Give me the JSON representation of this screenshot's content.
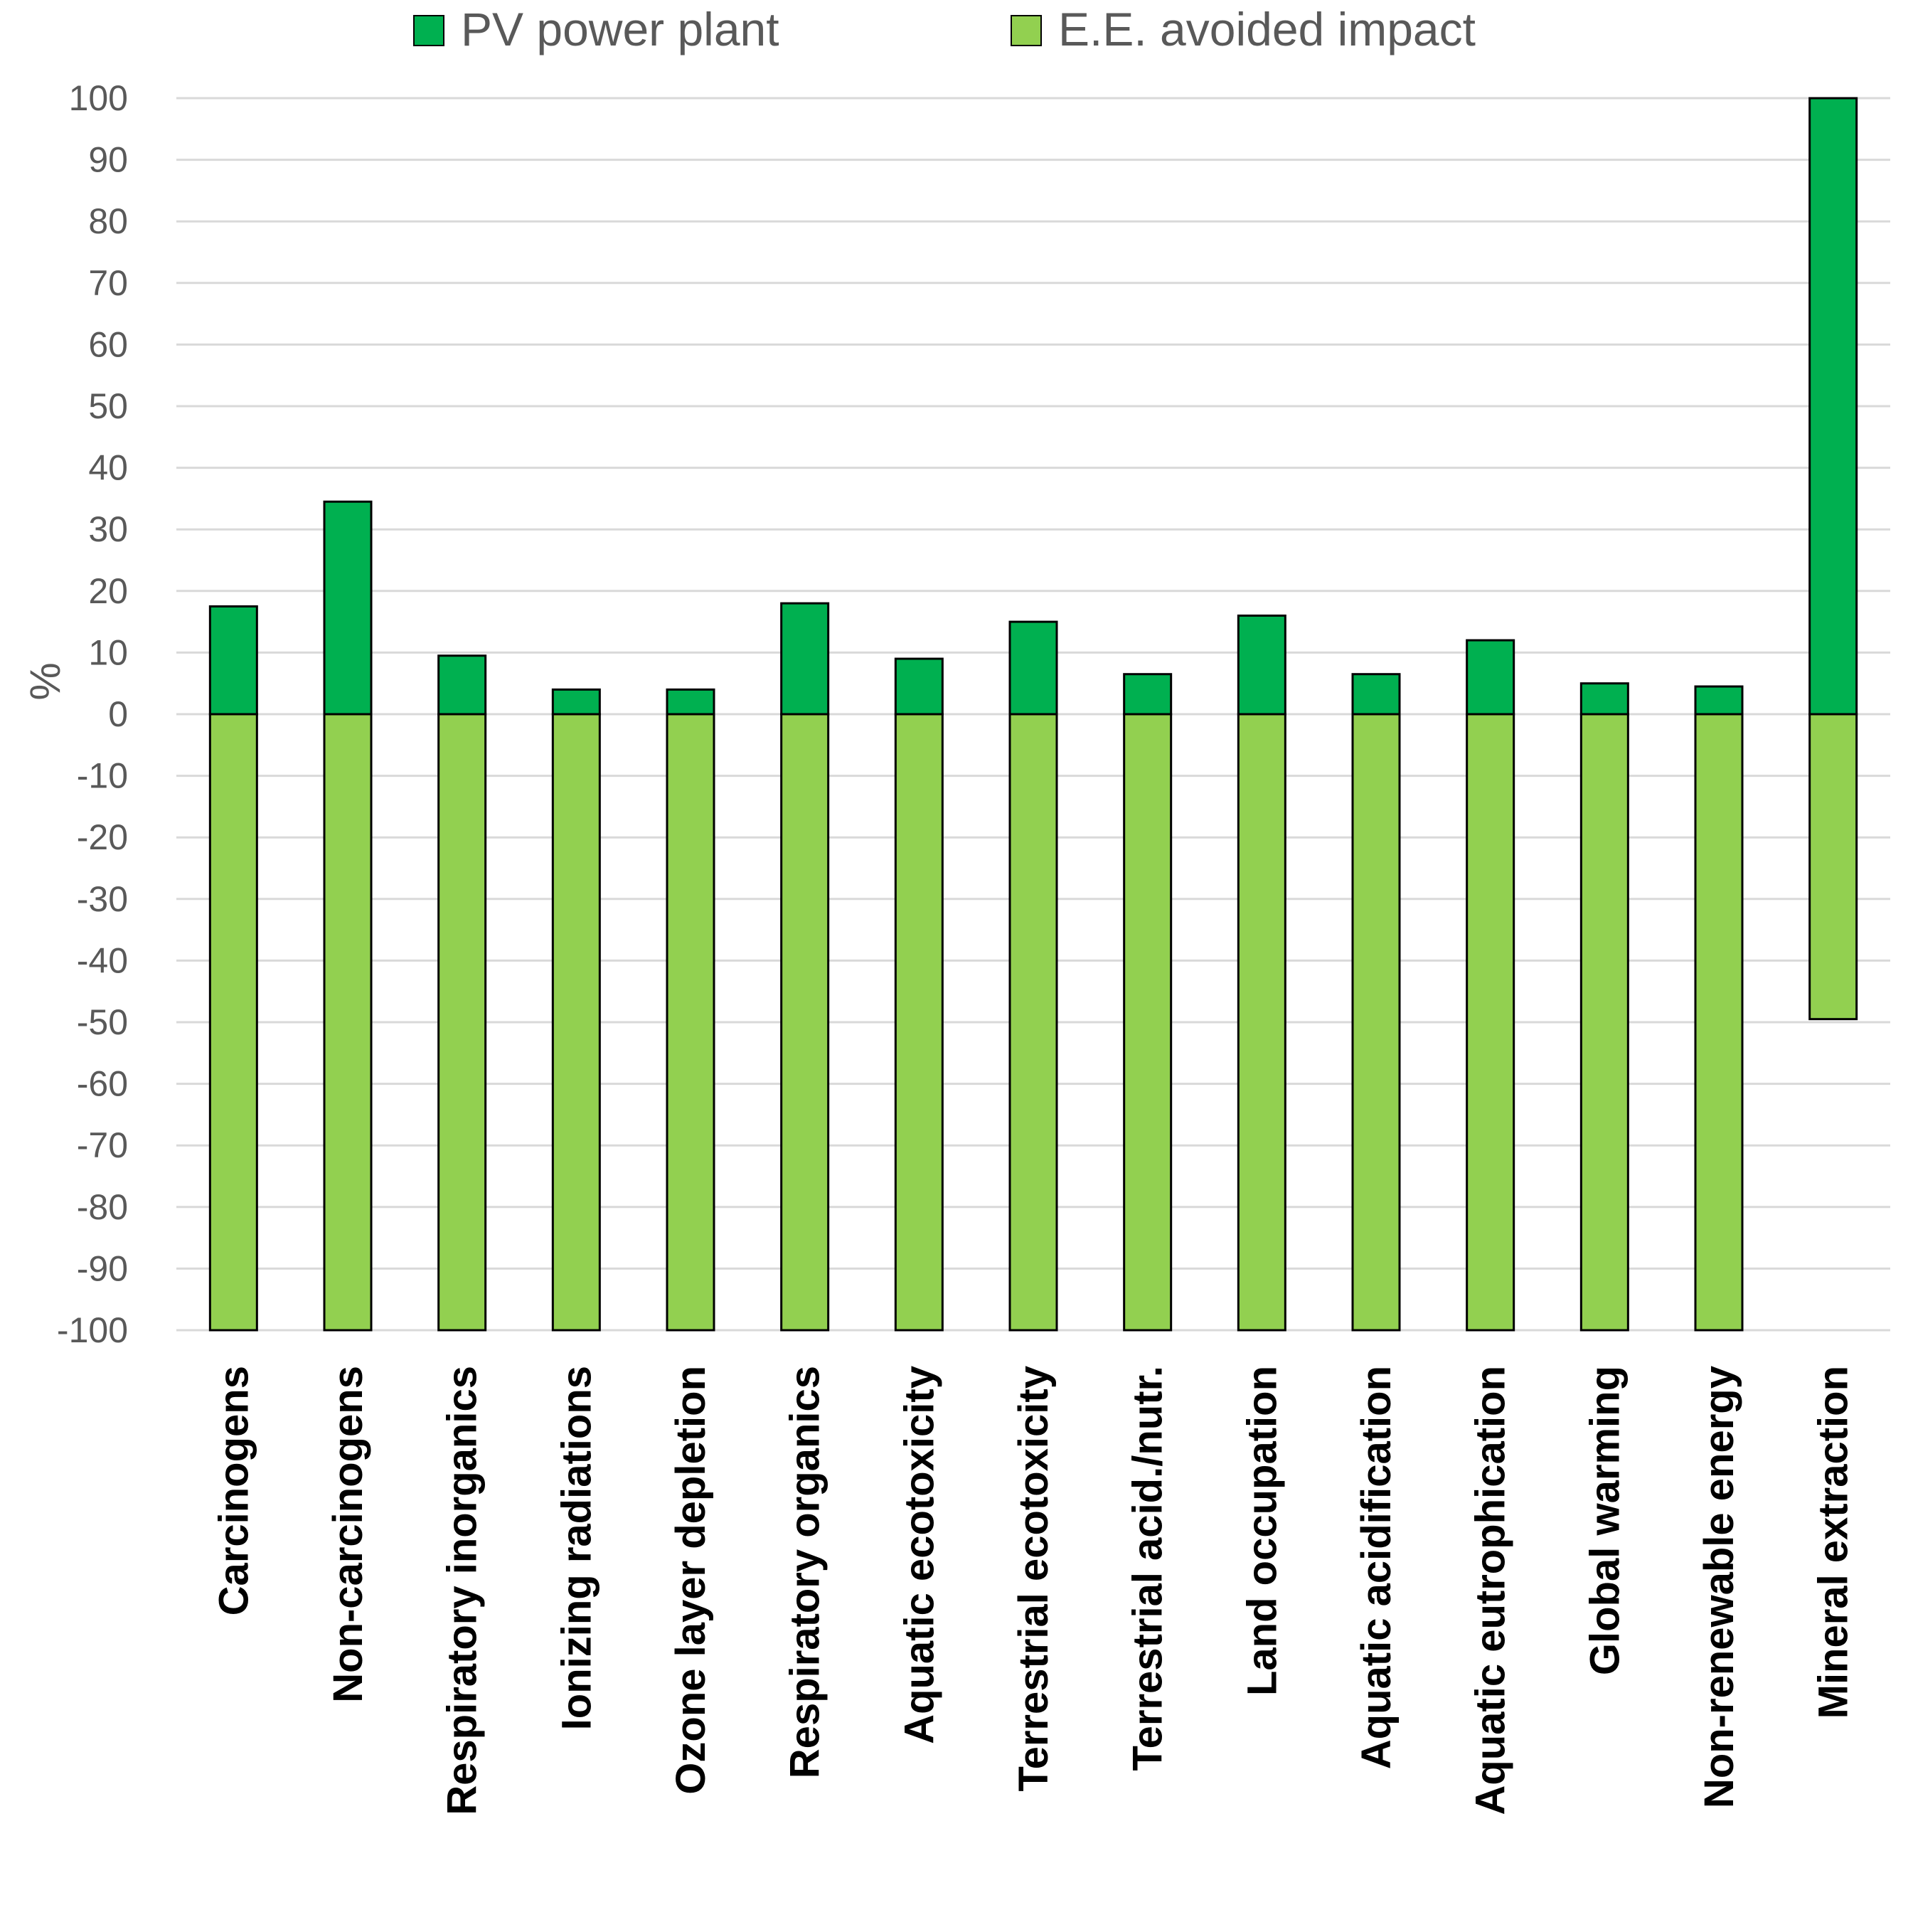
{
  "chart_data": {
    "type": "bar",
    "stacked": true,
    "title": "",
    "xlabel": "",
    "ylabel": "%",
    "ylim": [
      -100,
      100
    ],
    "yticks": [
      100,
      90,
      80,
      70,
      60,
      50,
      40,
      30,
      20,
      10,
      0,
      -10,
      -20,
      -30,
      -40,
      -50,
      -60,
      -70,
      -80,
      -90,
      -100
    ],
    "grid": true,
    "legend_position": "top",
    "categories": [
      "Carcinogens",
      "Non-carcinogens",
      "Respiratory inorganics",
      "Ionizing radiations",
      "Ozone layer depletion",
      "Respiratory organics",
      "Aquatic ecotoxicity",
      "Terrestrial ecotoxicity",
      "Terrestrial acid./nutr.",
      "Land occupation",
      "Aquatic acidification",
      "Aquatic eutrophication",
      "Global warming",
      "Non-renewable energy",
      "Mineral extraction"
    ],
    "series": [
      {
        "name": "PV power plant",
        "color": "#00b050",
        "values": [
          17.5,
          34.5,
          9.5,
          4,
          4,
          18,
          9,
          15,
          6.5,
          16,
          6.5,
          12,
          5,
          4.5,
          100
        ]
      },
      {
        "name": "E.E. avoided impact",
        "color": "#92d050",
        "values": [
          -100,
          -100,
          -100,
          -100,
          -100,
          -100,
          -100,
          -100,
          -100,
          -100,
          -100,
          -100,
          -100,
          -100,
          -49.5
        ]
      }
    ]
  },
  "colors": {
    "gridline": "#d9d9d9",
    "bar_outline": "#000000",
    "tick_text": "#595959",
    "category_text": "#000000"
  }
}
